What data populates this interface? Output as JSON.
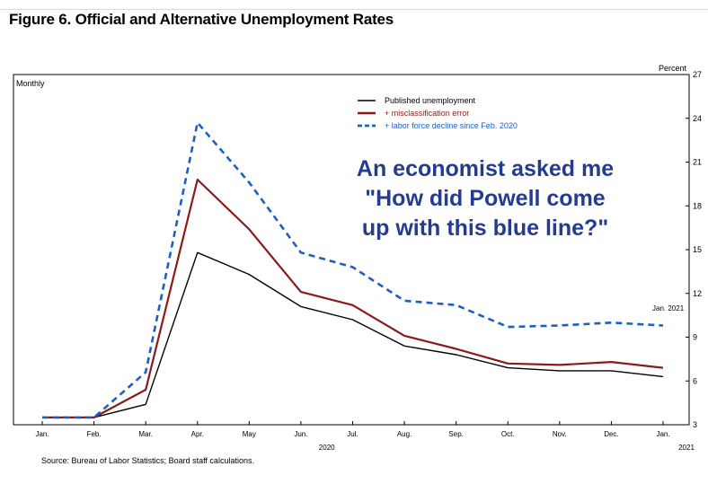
{
  "figure_title": "Figure 6. Official and Alternative Unemployment Rates",
  "source_note": "Source: Bureau of Labor Statistics; Board staff calculations.",
  "overlay_text": {
    "line1": "An economist asked me",
    "line2": "\"How did Powell come",
    "line3": "up with this blue line?\""
  },
  "colors": {
    "published": "#000000",
    "misclassification": "#8b1a1a",
    "labor_force": "#1f5fbf",
    "overlay": "#243c8f"
  },
  "chart_data": {
    "type": "line",
    "title": "Figure 6. Official and Alternative Unemployment Rates",
    "left_axis_label": "Monthly",
    "right_axis_label": "Percent",
    "end_annotation": "Jan. 2021",
    "categories": [
      "Jan.",
      "Feb.",
      "Mar.",
      "Apr.",
      "May",
      "Jun.",
      "Jul.",
      "Aug.",
      "Sep.",
      "Oct.",
      "Nov.",
      "Dec.",
      "Jan."
    ],
    "year_labels": [
      "2020",
      "2021"
    ],
    "ylim": [
      3,
      27
    ],
    "yticks": [
      3,
      6,
      9,
      12,
      15,
      18,
      21,
      24,
      27
    ],
    "grid": false,
    "legend_position": "top-center",
    "series": [
      {
        "name": "Published unemployment",
        "style": "solid",
        "values": [
          3.5,
          3.5,
          4.4,
          14.8,
          13.3,
          11.1,
          10.2,
          8.4,
          7.8,
          6.9,
          6.7,
          6.7,
          6.3
        ]
      },
      {
        "name": "+ misclassification error",
        "style": "solid",
        "values": [
          3.5,
          3.5,
          5.4,
          19.8,
          16.4,
          12.1,
          11.2,
          9.1,
          8.2,
          7.2,
          7.1,
          7.3,
          6.9
        ]
      },
      {
        "name": "+ labor force decline since Feb. 2020",
        "style": "dashed",
        "values": [
          3.5,
          3.5,
          6.6,
          23.7,
          19.6,
          14.8,
          13.8,
          11.5,
          11.2,
          9.7,
          9.8,
          10.0,
          9.8
        ]
      }
    ]
  }
}
